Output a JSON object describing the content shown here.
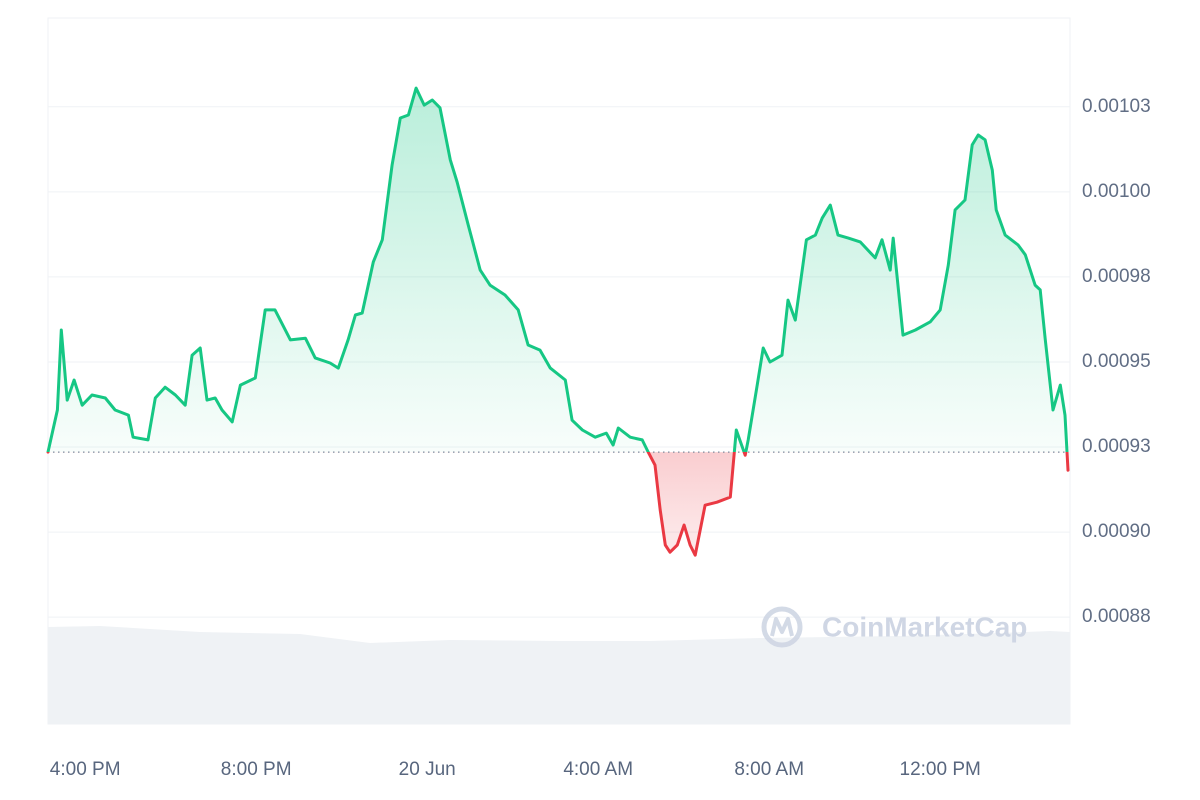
{
  "chart_data": {
    "type": "line",
    "watermark": "CoinMarketCap",
    "x": [
      -0.87,
      -0.65,
      -0.56,
      -0.42,
      -0.26,
      -0.07,
      0.16,
      0.47,
      0.7,
      1.01,
      1.12,
      1.47,
      1.64,
      1.87,
      2.11,
      2.34,
      2.5,
      2.69,
      2.85,
      3.04,
      3.2,
      3.44,
      3.63,
      3.98,
      4.21,
      4.44,
      4.8,
      5.15,
      5.38,
      5.73,
      5.92,
      6.15,
      6.32,
      6.48,
      6.74,
      6.95,
      7.18,
      7.37,
      7.56,
      7.74,
      7.93,
      8.12,
      8.3,
      8.54,
      8.7,
      8.96,
      9.24,
      9.47,
      9.82,
      10.13,
      10.36,
      10.64,
      10.88,
      11.23,
      11.39,
      11.63,
      11.93,
      12.19,
      12.35,
      12.47,
      12.75,
      13.03,
      13.17,
      13.33,
      13.45,
      13.57,
      13.68,
      13.85,
      14.01,
      14.15,
      14.27,
      14.5,
      14.78,
      15.09,
      15.23,
      15.44,
      15.51,
      15.72,
      15.86,
      16.02,
      16.3,
      16.44,
      16.61,
      16.87,
      17.08,
      17.24,
      17.43,
      17.61,
      17.85,
      18.13,
      18.48,
      18.64,
      18.83,
      18.9,
      19.13,
      19.42,
      19.77,
      20.0,
      20.19,
      20.35,
      20.58,
      20.75,
      20.89,
      21.05,
      21.22,
      21.31,
      21.52,
      21.82,
      21.99,
      22.22,
      22.34,
      22.46,
      22.64,
      22.81,
      22.92,
      22.99
    ],
    "values": [
      0.0009235,
      0.0009359,
      0.0009594,
      0.0009388,
      0.0009447,
      0.0009373,
      0.0009403,
      0.0009394,
      0.0009359,
      0.0009344,
      0.0009279,
      0.0009271,
      0.0009394,
      0.0009426,
      0.0009403,
      0.0009373,
      0.000952,
      0.0009541,
      0.0009388,
      0.0009394,
      0.0009359,
      0.0009324,
      0.0009432,
      0.0009453,
      0.0009653,
      0.0009653,
      0.0009565,
      0.000957,
      0.0009512,
      0.0009497,
      0.0009482,
      0.0009565,
      0.0009638,
      0.0009644,
      0.0009794,
      0.0009859,
      0.0010079,
      0.0010217,
      0.0010226,
      0.0010305,
      0.0010255,
      0.001027,
      0.0010247,
      0.0010094,
      0.0010029,
      0.0009903,
      0.000977,
      0.0009726,
      0.0009697,
      0.0009653,
      0.000955,
      0.0009535,
      0.0009482,
      0.0009447,
      0.0009329,
      0.00093,
      0.0009279,
      0.0009291,
      0.0009256,
      0.0009306,
      0.0009279,
      0.0009271,
      0.0009235,
      0.0009197,
      0.0009065,
      0.0008962,
      0.0008941,
      0.0008962,
      0.0009021,
      0.0008962,
      0.0008932,
      0.0009079,
      0.0009088,
      0.0009103,
      0.00093,
      0.0009226,
      0.0009271,
      0.0009432,
      0.0009541,
      0.00095,
      0.000952,
      0.0009682,
      0.0009623,
      0.0009859,
      0.0009873,
      0.0009923,
      0.0009961,
      0.0009873,
      0.0009864,
      0.0009853,
      0.0009806,
      0.0009859,
      0.000977,
      0.0009864,
      0.0009579,
      0.0009594,
      0.0009618,
      0.0009653,
      0.0009785,
      0.0009947,
      0.0009976,
      0.0010138,
      0.0010167,
      0.0010153,
      0.0010064,
      0.0009947,
      0.0009873,
      0.0009844,
      0.0009815,
      0.0009726,
      0.0009712,
      0.0009565,
      0.0009359,
      0.0009432,
      0.0009344,
      0.0009182
    ],
    "baseline": 0.0009235,
    "colors": {
      "up": "#16c784",
      "down": "#ea3943"
    },
    "xlim": [
      -0.87,
      22.99
    ],
    "ylim": [
      0.0008436,
      0.0010511
    ],
    "xticks": [
      {
        "value": 0,
        "label": "4:00 PM"
      },
      {
        "value": 4,
        "label": "8:00 PM"
      },
      {
        "value": 8,
        "label": "20 Jun"
      },
      {
        "value": 12,
        "label": "4:00 AM"
      },
      {
        "value": 16,
        "label": "8:00 AM"
      },
      {
        "value": 20,
        "label": "12:00 PM"
      }
    ],
    "yticks": [
      {
        "value": 0.000875,
        "label": "0.00088"
      },
      {
        "value": 0.0009,
        "label": "0.00090"
      },
      {
        "value": 0.000925,
        "label": "0.00093"
      },
      {
        "value": 0.00095,
        "label": "0.00095"
      },
      {
        "value": 0.000975,
        "label": "0.00098"
      },
      {
        "value": 0.001,
        "label": "0.00100"
      },
      {
        "value": 0.001025,
        "label": "0.00103"
      }
    ],
    "grid": true
  }
}
